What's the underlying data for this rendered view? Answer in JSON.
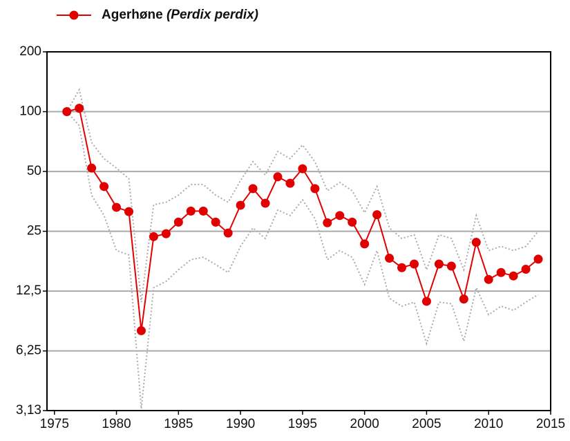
{
  "chart_data": {
    "type": "line",
    "x": [
      1976,
      1977,
      1978,
      1979,
      1980,
      1981,
      1982,
      1983,
      1984,
      1985,
      1986,
      1987,
      1988,
      1989,
      1990,
      1991,
      1992,
      1993,
      1994,
      1995,
      1996,
      1997,
      1998,
      1999,
      2000,
      2001,
      2002,
      2003,
      2004,
      2005,
      2006,
      2007,
      2008,
      2009,
      2010,
      2011,
      2012,
      2013,
      2014
    ],
    "series": [
      {
        "name": "Agerhøne (Perdix perdix)",
        "color": "#e00000",
        "values": [
          100,
          104,
          52,
          42,
          33,
          31.4,
          7.9,
          23.5,
          24.3,
          27.8,
          31.6,
          31.6,
          27.8,
          24.5,
          33.8,
          41,
          34.6,
          47,
          43.6,
          51.6,
          41,
          27.6,
          30,
          27.8,
          21.6,
          30.3,
          18.3,
          16.4,
          17.1,
          11.1,
          17.1,
          16.7,
          11.4,
          22,
          14.3,
          15.5,
          14.9,
          16.1,
          18.1
        ],
        "upper": [
          100,
          129,
          70,
          58,
          52,
          46,
          11,
          34,
          35,
          38,
          43,
          43,
          38,
          35,
          45,
          56,
          48,
          63,
          58,
          68,
          56,
          40,
          44,
          40,
          31,
          42,
          26,
          23,
          24,
          16,
          24,
          23,
          16,
          30,
          20,
          21,
          20,
          21,
          25
        ],
        "lower": [
          100,
          85,
          38,
          30,
          20,
          19,
          3.2,
          13,
          14,
          16,
          18,
          18.5,
          17,
          15.5,
          21,
          26,
          23,
          32,
          30,
          36,
          29,
          18,
          20,
          18.5,
          13.5,
          20,
          11.5,
          10.5,
          11,
          6.8,
          11,
          10.8,
          7,
          13,
          9.5,
          10.5,
          10,
          11,
          12
        ],
        "band_color": "#aaaaaa"
      }
    ],
    "xlim": [
      1974.4,
      2015
    ],
    "xticks": [
      1975,
      1980,
      1985,
      1990,
      1995,
      2000,
      2005,
      2010,
      2015
    ],
    "ylim": [
      3.13,
      200
    ],
    "yticks": [
      {
        "value": 3.13,
        "label": "3,13"
      },
      {
        "value": 6.25,
        "label": "6,25"
      },
      {
        "value": 12.5,
        "label": "12,5"
      },
      25,
      50,
      100,
      200
    ],
    "log_scale": true,
    "grid": true,
    "legend": "top-left"
  }
}
